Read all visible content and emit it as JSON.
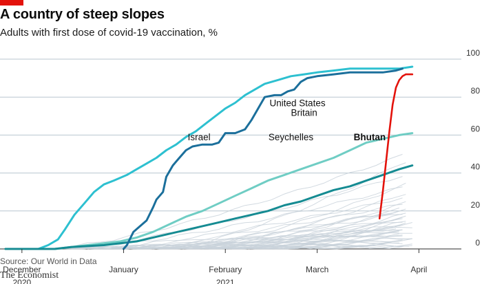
{
  "header": {
    "title": "A country of steep slopes",
    "subtitle": "Adults with first dose of covid-19 vaccination, %"
  },
  "footer": {
    "source": "Source: Our World in Data",
    "brand": "The Economist"
  },
  "colors": {
    "accent_red": "#e3120b",
    "israel": "#2dc0d0",
    "seychelles": "#1b6f9b",
    "britain": "#6fcdc4",
    "united_states": "#158b92",
    "bhutan": "#e3120b",
    "other_countries": "#c9d2da",
    "gridline": "#b8c6cf"
  },
  "chart_data": {
    "type": "line",
    "title": "A country of steep slopes",
    "subtitle": "Adults with first dose of covid-19 vaccination, %",
    "x_unit": "days since Dec 1 2020",
    "xlim": [
      -5,
      131
    ],
    "ylim": [
      0,
      100
    ],
    "y_ticks": [
      0,
      20,
      40,
      60,
      80,
      100
    ],
    "x_ticks": [
      {
        "x": 0,
        "label": "December"
      },
      {
        "x": 31,
        "label": "January"
      },
      {
        "x": 62,
        "label": "February"
      },
      {
        "x": 90,
        "label": "March"
      },
      {
        "x": 121,
        "label": "April"
      }
    ],
    "year_labels": [
      {
        "x": 0,
        "label": "2020"
      },
      {
        "x": 62,
        "label": "2021"
      }
    ],
    "grid": true,
    "series": [
      {
        "name": "Israel",
        "key": "israel",
        "label_at": [
          54,
          59
        ],
        "points": [
          [
            -5,
            0
          ],
          [
            5,
            0
          ],
          [
            8,
            2
          ],
          [
            11,
            5
          ],
          [
            13,
            10
          ],
          [
            16,
            18
          ],
          [
            19,
            24
          ],
          [
            22,
            30
          ],
          [
            25,
            34
          ],
          [
            28,
            36
          ],
          [
            32,
            39
          ],
          [
            35,
            42
          ],
          [
            38,
            45
          ],
          [
            41,
            48
          ],
          [
            44,
            52
          ],
          [
            47,
            55
          ],
          [
            50,
            59
          ],
          [
            53,
            62
          ],
          [
            56,
            66
          ],
          [
            59,
            70
          ],
          [
            62,
            74
          ],
          [
            65,
            77
          ],
          [
            68,
            81
          ],
          [
            71,
            84
          ],
          [
            74,
            87
          ],
          [
            78,
            89
          ],
          [
            82,
            91
          ],
          [
            86,
            92
          ],
          [
            90,
            93
          ],
          [
            95,
            94
          ],
          [
            100,
            95
          ],
          [
            105,
            95
          ],
          [
            110,
            95
          ],
          [
            115,
            95
          ],
          [
            119,
            96
          ]
        ]
      },
      {
        "name": "Seychelles",
        "key": "seychelles",
        "label_at": [
          82,
          59
        ],
        "points": [
          [
            31,
            0
          ],
          [
            32,
            2
          ],
          [
            34,
            9
          ],
          [
            36,
            12
          ],
          [
            38,
            15
          ],
          [
            40,
            22
          ],
          [
            41,
            26
          ],
          [
            43,
            30
          ],
          [
            44,
            38
          ],
          [
            46,
            44
          ],
          [
            48,
            48
          ],
          [
            50,
            52
          ],
          [
            52,
            54
          ],
          [
            55,
            55
          ],
          [
            58,
            55
          ],
          [
            60,
            56
          ],
          [
            62,
            61
          ],
          [
            65,
            61
          ],
          [
            68,
            63
          ],
          [
            70,
            68
          ],
          [
            72,
            74
          ],
          [
            74,
            80
          ],
          [
            77,
            81
          ],
          [
            79,
            81
          ],
          [
            81,
            83
          ],
          [
            83,
            84
          ],
          [
            85,
            88
          ],
          [
            87,
            90
          ],
          [
            90,
            91
          ],
          [
            95,
            92
          ],
          [
            100,
            93
          ],
          [
            105,
            93
          ],
          [
            110,
            93
          ],
          [
            114,
            94
          ],
          [
            116,
            95
          ]
        ]
      },
      {
        "name": "Britain",
        "key": "britain",
        "label_at": [
          86,
          72
        ],
        "points": [
          [
            -5,
            0
          ],
          [
            5,
            0
          ],
          [
            10,
            0
          ],
          [
            15,
            1
          ],
          [
            20,
            2
          ],
          [
            25,
            3
          ],
          [
            30,
            4
          ],
          [
            35,
            6
          ],
          [
            40,
            9
          ],
          [
            45,
            13
          ],
          [
            50,
            17
          ],
          [
            55,
            20
          ],
          [
            60,
            24
          ],
          [
            65,
            28
          ],
          [
            70,
            32
          ],
          [
            75,
            36
          ],
          [
            80,
            39
          ],
          [
            85,
            42
          ],
          [
            90,
            45
          ],
          [
            95,
            48
          ],
          [
            100,
            52
          ],
          [
            105,
            56
          ],
          [
            110,
            58
          ],
          [
            115,
            60
          ],
          [
            119,
            61
          ]
        ]
      },
      {
        "name": "United States",
        "key": "united_states",
        "label_at": [
          84,
          77
        ],
        "points": [
          [
            -5,
            0
          ],
          [
            10,
            0
          ],
          [
            15,
            1
          ],
          [
            20,
            1.5
          ],
          [
            25,
            2
          ],
          [
            30,
            3
          ],
          [
            35,
            4
          ],
          [
            40,
            6
          ],
          [
            45,
            8
          ],
          [
            50,
            10
          ],
          [
            55,
            12
          ],
          [
            60,
            14
          ],
          [
            65,
            16
          ],
          [
            70,
            18
          ],
          [
            75,
            20
          ],
          [
            80,
            23
          ],
          [
            85,
            25
          ],
          [
            90,
            28
          ],
          [
            95,
            31
          ],
          [
            100,
            33
          ],
          [
            105,
            36
          ],
          [
            110,
            39
          ],
          [
            115,
            42
          ],
          [
            119,
            44
          ]
        ]
      },
      {
        "name": "Bhutan",
        "key": "bhutan",
        "label_at": [
          106,
          59
        ],
        "points": [
          [
            109,
            16
          ],
          [
            110,
            30
          ],
          [
            111,
            46
          ],
          [
            112,
            62
          ],
          [
            113,
            76
          ],
          [
            114,
            85
          ],
          [
            115,
            89
          ],
          [
            116,
            91
          ],
          [
            117,
            92
          ],
          [
            119,
            92
          ]
        ]
      }
    ],
    "background_series": {
      "name": "Other countries",
      "key": "other_countries",
      "endpoints": [
        50,
        47,
        40,
        36,
        33,
        30,
        28,
        26,
        24,
        22,
        21,
        20,
        19,
        18,
        17,
        16,
        15,
        14,
        13,
        12,
        11,
        10,
        10,
        9,
        8,
        8,
        7,
        6,
        5,
        4,
        3,
        2,
        1,
        22,
        18,
        14,
        11,
        9,
        6,
        5,
        4,
        3,
        2,
        2,
        1
      ]
    }
  }
}
